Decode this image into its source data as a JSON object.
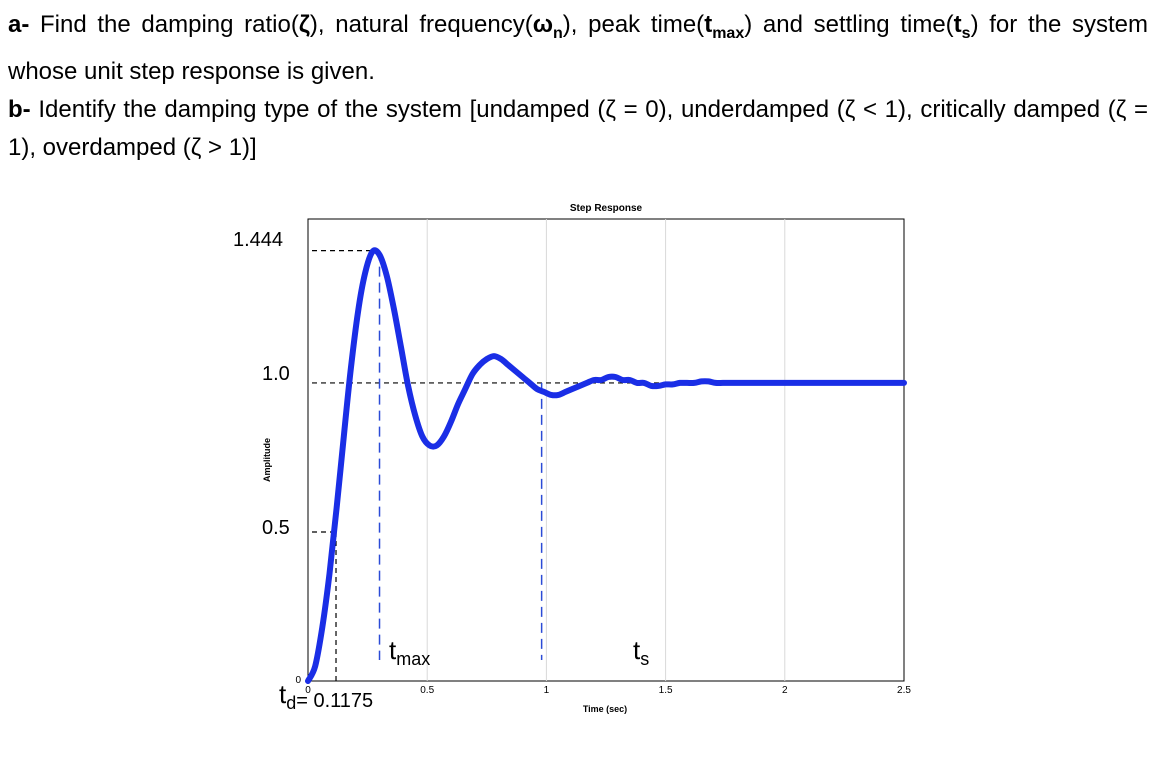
{
  "question": {
    "part_a": {
      "label": "a-",
      "t1": " Find the damping ratio(",
      "zeta": "ζ",
      "t2": "), natural frequency(",
      "omega": "ω",
      "omega_sub": "n",
      "t3": "), peak time(",
      "tmax_t": "t",
      "tmax_sub": "max",
      "t4": ") and settling time(",
      "ts_t": "t",
      "ts_sub": "s",
      "t5": ") for the system whose unit step response is given."
    },
    "part_b": {
      "label": "b-",
      "text": " Identify the damping type of the system [undamped (ζ = 0), underdamped (ζ < 1), critically damped (ζ = 1), overdamped (ζ > 1)]"
    }
  },
  "chart_data": {
    "type": "line",
    "title": "Step Response",
    "xlabel": "Time (sec)",
    "ylabel": "Amplitude",
    "xlim": [
      0,
      2.5
    ],
    "ylim": [
      0,
      1.55
    ],
    "grid": true,
    "x_ticks": [
      "0",
      "0.5",
      "1",
      "1.5",
      "2",
      "2.5"
    ],
    "y_tick_zero": "0",
    "y_labels": [
      "1.444",
      "1.0",
      "0.5"
    ],
    "series": [
      {
        "color": "#1a2ee6",
        "x": [
          0.0,
          0.03,
          0.06,
          0.09,
          0.12,
          0.15,
          0.18,
          0.21,
          0.24,
          0.27,
          0.3,
          0.33,
          0.36,
          0.39,
          0.42,
          0.45,
          0.48,
          0.51,
          0.54,
          0.57,
          0.6,
          0.63,
          0.66,
          0.69,
          0.72,
          0.75,
          0.78,
          0.81,
          0.84,
          0.87,
          0.9,
          0.93,
          0.96,
          0.99,
          1.02,
          1.05,
          1.08,
          1.11,
          1.14,
          1.17,
          1.2,
          1.23,
          1.26,
          1.29,
          1.32,
          1.35,
          1.38,
          1.41,
          1.44,
          1.47,
          1.5,
          1.53,
          1.56,
          1.59,
          1.62,
          1.65,
          1.68,
          1.71,
          1.74,
          1.77,
          1.8,
          1.83,
          1.86,
          1.89,
          1.92,
          1.95,
          1.98,
          2.01,
          2.04,
          2.07,
          2.1,
          2.13,
          2.16,
          2.19,
          2.22,
          2.25,
          2.28,
          2.31,
          2.34,
          2.37,
          2.4,
          2.43,
          2.46,
          2.49,
          2.5
        ],
        "y": [
          0.0,
          0.05,
          0.18,
          0.36,
          0.58,
          0.82,
          1.05,
          1.24,
          1.37,
          1.44,
          1.43,
          1.36,
          1.25,
          1.12,
          0.99,
          0.89,
          0.82,
          0.79,
          0.79,
          0.82,
          0.87,
          0.93,
          0.98,
          1.03,
          1.06,
          1.08,
          1.09,
          1.08,
          1.06,
          1.04,
          1.02,
          1.0,
          0.98,
          0.97,
          0.96,
          0.96,
          0.97,
          0.98,
          0.99,
          1.0,
          1.01,
          1.01,
          1.02,
          1.02,
          1.01,
          1.01,
          1.0,
          1.0,
          0.99,
          0.99,
          0.995,
          0.995,
          1.0,
          1.0,
          1.0,
          1.005,
          1.005,
          1.0,
          1.0,
          1.0,
          1.0,
          1.0,
          1.0,
          1.0,
          1.0,
          1.0,
          1.0,
          1.0,
          1.0,
          1.0,
          1.0,
          1.0,
          1.0,
          1.0,
          1.0,
          1.0,
          1.0,
          1.0,
          1.0,
          1.0,
          1.0,
          1.0,
          1.0,
          1.0,
          1.0
        ]
      }
    ],
    "annotations": {
      "peak_value": 1.444,
      "final_value": 1.0,
      "half_value": 0.5,
      "t_max_x": 0.3,
      "t_d_x": 0.1175,
      "t_s_x": 0.98,
      "label_tmax_t": "t",
      "label_tmax_sub": "max",
      "label_ts_t": "t",
      "label_ts_sub": "s",
      "label_td_t": "t",
      "label_td_sub": "d",
      "label_td_value": "= 0.1175"
    }
  }
}
